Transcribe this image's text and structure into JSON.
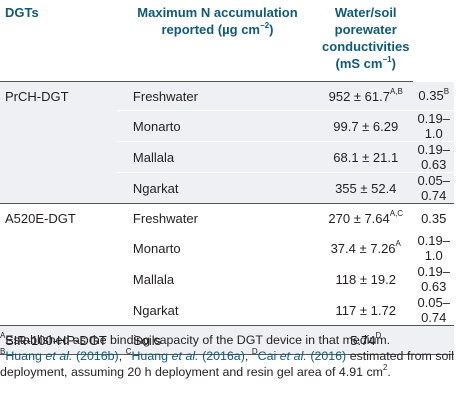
{
  "header": {
    "col1": "DGTs",
    "col2_line1": "Maximum N accumulation",
    "col2_line2_pre": "reported (µg cm",
    "col2_line2_sup": "−2",
    "col2_line2_post": ")",
    "col3_line1": "Water/soil",
    "col3_line2": "porewater",
    "col3_line3": "conductivities",
    "col3_line4_pre": "(mS cm",
    "col3_line4_sup": "−1",
    "col3_line4_post": ")"
  },
  "groups": [
    {
      "dgt": "PrCH-DGT",
      "rows": [
        {
          "medium": "Freshwater",
          "value": "952 ± 61.7",
          "value_sup": "A,B",
          "cond": "0.35",
          "cond_sup": "B"
        },
        {
          "medium": "Monarto",
          "value": "99.7 ± 6.29",
          "value_sup": "",
          "cond": "0.19–1.0",
          "cond_sup": ""
        },
        {
          "medium": "Mallala",
          "value": "68.1 ± 21.1",
          "value_sup": "",
          "cond": "0.19–0.63",
          "cond_sup": ""
        },
        {
          "medium": "Ngarkat",
          "value": "355 ± 52.4",
          "value_sup": "",
          "cond": "0.05–0.74",
          "cond_sup": ""
        }
      ]
    },
    {
      "dgt": "A520E-DGT",
      "rows": [
        {
          "medium": "Freshwater",
          "value": "270 ± 7.64",
          "value_sup": "A,C",
          "cond": "0.35",
          "cond_sup": ""
        },
        {
          "medium": "Monarto",
          "value": "37.4 ± 7.26",
          "value_sup": "A",
          "cond": "0.19–1.0",
          "cond_sup": ""
        },
        {
          "medium": "Mallala",
          "value": "118 ± 19.2",
          "value_sup": "",
          "cond": "0.19–0.63",
          "cond_sup": ""
        },
        {
          "medium": "Ngarkat",
          "value": "117 ± 1.72",
          "value_sup": "",
          "cond": "0.05–0.74",
          "cond_sup": ""
        }
      ]
    },
    {
      "dgt": "SIR-100-HP-DGT",
      "rows": [
        {
          "medium": "Soils",
          "value": "5.74",
          "value_sup": "D",
          "cond": "",
          "cond_sup": ""
        }
      ]
    }
  ],
  "notes": {
    "a_sup": "A",
    "a_text": "Established as the binding capacity of the DGT device in that medium.",
    "b_sup": "B",
    "b_author": "Huang ",
    "b_etal": "et al.",
    "b_year": " (2016b)",
    "b_sep": ", ",
    "c_sup": "C",
    "c_author": "Huang ",
    "c_etal": "et al.",
    "c_year": " (2016a)",
    "c_sep": ", ",
    "d_sup": "D",
    "d_author": "Cai ",
    "d_etal": "et al.",
    "d_year": " (2016)",
    "d_text": " estimated from soil deployment, assuming 20 h deployment and resin gel area of 4.91 cm",
    "d_unit_sup": "2",
    "d_end": "."
  }
}
